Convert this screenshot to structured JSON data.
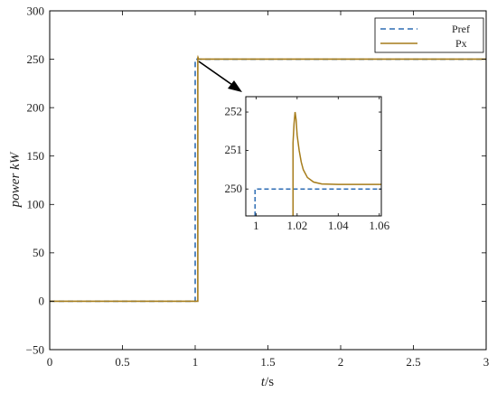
{
  "chart_data": [
    {
      "panel": "main",
      "type": "line",
      "xlabel_italic": "t",
      "xlabel_unit": "/s",
      "ylabel": "power kW",
      "xlim": [
        0,
        3
      ],
      "ylim": [
        -50,
        300
      ],
      "xticks": [
        0,
        0.5,
        1,
        1.5,
        2,
        2.5,
        3
      ],
      "xtick_labels": [
        "0",
        "0.5",
        "1",
        "1.5",
        "2",
        "2.5",
        "3"
      ],
      "yticks": [
        -50,
        0,
        50,
        100,
        150,
        200,
        250,
        300
      ],
      "ytick_labels": [
        "−50",
        "0",
        "50",
        "100",
        "150",
        "200",
        "250",
        "300"
      ],
      "grid": false,
      "legend_position": "top-right",
      "series": [
        {
          "name": "Pref",
          "color": "#2e6db4",
          "style": "dashed",
          "x": [
            0,
            1,
            1,
            3
          ],
          "y": [
            0,
            0,
            250,
            250
          ]
        },
        {
          "name": "Px",
          "color": "#a67c1a",
          "style": "solid",
          "x": [
            0,
            1.018,
            1.018,
            1.0185,
            1.019,
            1.0195,
            1.02,
            1.021,
            1.022,
            1.023,
            1.025,
            1.028,
            1.032,
            1.04,
            1.06,
            3
          ],
          "y": [
            0,
            0,
            251.2,
            251.7,
            252.0,
            251.8,
            251.4,
            251.0,
            250.7,
            250.5,
            250.3,
            250.18,
            250.13,
            250.12,
            250.12,
            250.12
          ]
        }
      ]
    },
    {
      "panel": "inset",
      "type": "line",
      "xlim": [
        0.995,
        1.061
      ],
      "ylim": [
        249.3,
        252.4
      ],
      "xticks": [
        1,
        1.02,
        1.04,
        1.06
      ],
      "xtick_labels": [
        "1",
        "1.02",
        "1.04",
        "1.06"
      ],
      "yticks": [
        250,
        251,
        252
      ],
      "ytick_labels": [
        "250",
        "251",
        "252"
      ],
      "grid": false,
      "series": [
        {
          "color": "#2e6db4",
          "style": "dashed",
          "x": [
            0.9995,
            0.9995,
            1.061
          ],
          "y": [
            249.3,
            250,
            250
          ]
        },
        {
          "color": "#a67c1a",
          "style": "solid",
          "x": [
            1.018,
            1.018,
            1.0185,
            1.019,
            1.0195,
            1.02,
            1.021,
            1.022,
            1.023,
            1.025,
            1.028,
            1.032,
            1.04,
            1.061
          ],
          "y": [
            249.3,
            251.2,
            251.7,
            252.0,
            251.8,
            251.4,
            251.0,
            250.7,
            250.5,
            250.3,
            250.18,
            250.13,
            250.12,
            250.12
          ]
        }
      ]
    }
  ]
}
